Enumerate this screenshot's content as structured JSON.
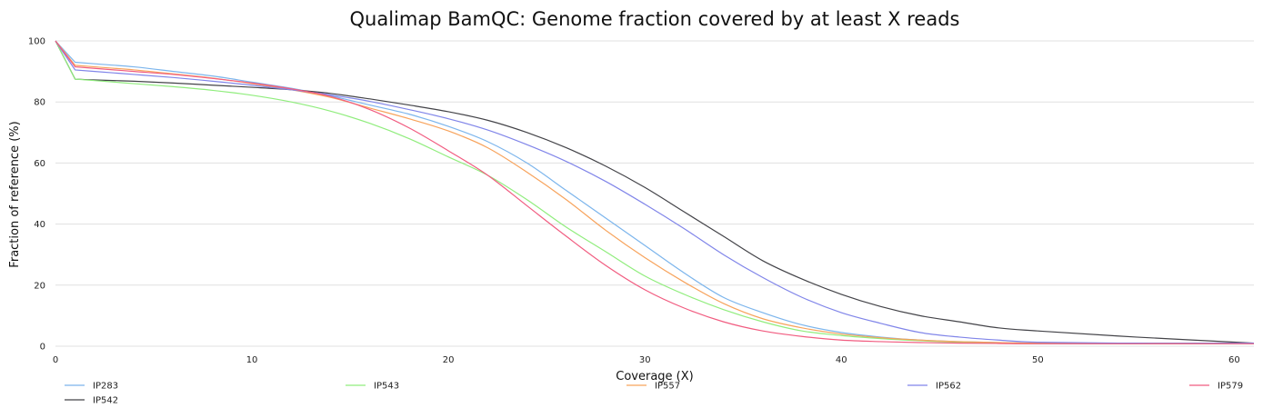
{
  "chart_data": {
    "type": "line",
    "title": "Qualimap BamQC: Genome fraction covered by at least X reads",
    "xlabel": "Coverage (X)",
    "ylabel": "Fraction of reference (%)",
    "xlim": [
      0,
      61
    ],
    "ylim": [
      0,
      100
    ],
    "x_ticks": [
      0,
      10,
      20,
      30,
      40,
      50,
      60
    ],
    "y_ticks": [
      0,
      20,
      40,
      60,
      80,
      100
    ],
    "x_tick_labels": [
      "0",
      "10",
      "20",
      "30",
      "40",
      "50",
      "60"
    ],
    "y_tick_labels": [
      "0",
      "20",
      "40",
      "60",
      "80",
      "100"
    ],
    "grid": true,
    "legend_position": "bottom",
    "x": [
      0,
      1,
      2,
      4,
      6,
      8,
      10,
      12,
      14,
      16,
      18,
      20,
      22,
      24,
      26,
      28,
      30,
      32,
      34,
      36,
      38,
      40,
      42,
      44,
      46,
      48,
      50,
      55,
      61
    ],
    "series": [
      {
        "name": "IP283",
        "color": "#7cb5ec",
        "values": [
          100,
          93,
          92.5,
          91.5,
          90,
          88.5,
          86.5,
          84.5,
          82,
          79,
          76,
          72,
          67,
          60,
          51,
          42,
          33,
          24,
          16,
          11,
          7,
          4.5,
          3,
          2,
          1.5,
          1.2,
          1,
          1,
          1
        ]
      },
      {
        "name": "IP542",
        "color": "#434348",
        "values": [
          100,
          87.5,
          87.2,
          86.8,
          86.2,
          85.5,
          84.8,
          84,
          82.8,
          81,
          79,
          76.8,
          74,
          70,
          65,
          59,
          52,
          44,
          36,
          28,
          22,
          17,
          13,
          10,
          8,
          6,
          5,
          3,
          1
        ]
      },
      {
        "name": "IP543",
        "color": "#90ed7d",
        "values": [
          100,
          87.5,
          87,
          86,
          85,
          83.8,
          82.2,
          80,
          77,
          73,
          68,
          62,
          56,
          48,
          39,
          31,
          23,
          17,
          12,
          8,
          5,
          3.5,
          2.5,
          1.8,
          1.3,
          1,
          0.8,
          0.8,
          0.8
        ]
      },
      {
        "name": "IP557",
        "color": "#f7a35c",
        "values": [
          100,
          92,
          91.5,
          90.5,
          89.2,
          87.8,
          86,
          84,
          81.5,
          78,
          74.5,
          70.5,
          65,
          57,
          48,
          38,
          29,
          21,
          14,
          9,
          6,
          4,
          2.8,
          2,
          1.5,
          1.2,
          1,
          1,
          1
        ]
      },
      {
        "name": "IP562",
        "color": "#8085e9",
        "values": [
          100,
          90.5,
          90,
          89,
          88,
          86.8,
          85.5,
          84,
          82.3,
          80.2,
          77.5,
          74.5,
          70.8,
          66,
          60.5,
          54,
          46.5,
          38.5,
          30,
          22.5,
          16,
          11,
          7.5,
          4.5,
          3,
          2,
          1.3,
          1,
          1
        ]
      },
      {
        "name": "IP579",
        "color": "#f15c80",
        "values": [
          100,
          91.5,
          91,
          90,
          89,
          87.7,
          86.2,
          84.3,
          81.8,
          77.5,
          71.5,
          64,
          56,
          46,
          36,
          26.5,
          18.5,
          12.5,
          8,
          5,
          3.2,
          2,
          1.5,
          1.2,
          1,
          0.9,
          0.8,
          0.8,
          0.8
        ]
      }
    ]
  }
}
